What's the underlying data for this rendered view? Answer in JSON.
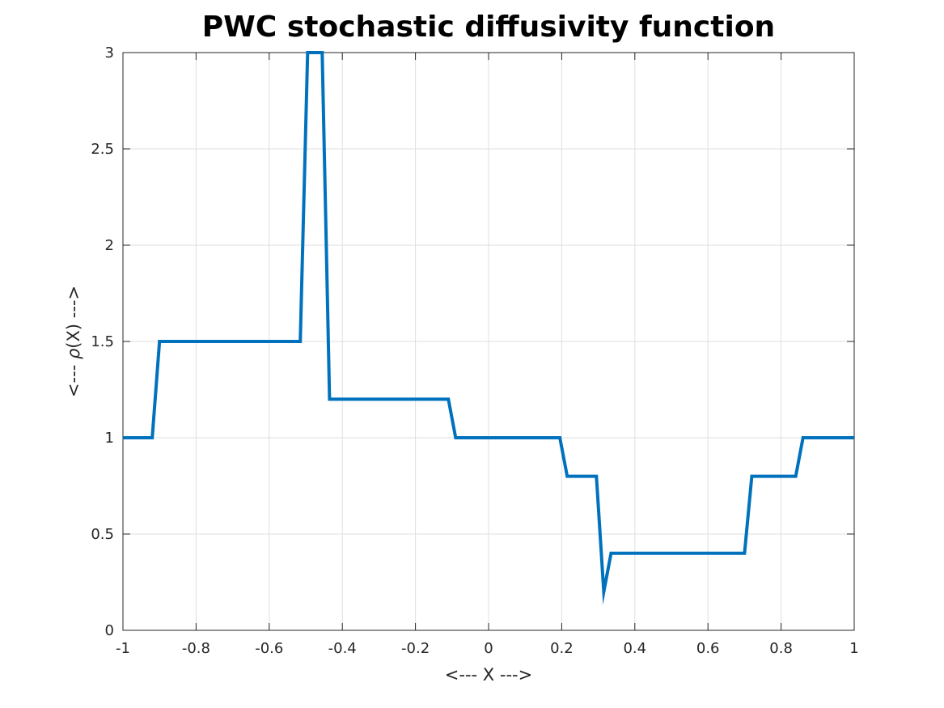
{
  "chart_data": {
    "type": "line",
    "title": "PWC stochastic diffusivity function",
    "xlabel": "<--- X --->",
    "ylabel_prefix": "<--- ",
    "ylabel_symbol": "ρ",
    "ylabel_suffix": "(X) --->",
    "xlim": [
      -1,
      1
    ],
    "ylim": [
      0,
      3
    ],
    "xticks": [
      -1,
      -0.8,
      -0.6,
      -0.4,
      -0.2,
      0,
      0.2,
      0.4,
      0.6,
      0.8,
      1
    ],
    "xtick_labels": [
      "-1",
      "-0.8",
      "-0.6",
      "-0.4",
      "-0.2",
      "0",
      "0.2",
      "0.4",
      "0.6",
      "0.8",
      "1"
    ],
    "yticks": [
      0,
      0.5,
      1,
      1.5,
      2,
      2.5,
      3
    ],
    "ytick_labels": [
      "0",
      "0.5",
      "1",
      "1.5",
      "2",
      "2.5",
      "3"
    ],
    "grid": true,
    "color": "#0072BD",
    "series": [
      {
        "x": [
          -1,
          -0.92,
          -0.9,
          -0.515,
          -0.495,
          -0.455,
          -0.435,
          -0.11,
          -0.09,
          0.195,
          0.215,
          0.295,
          0.315,
          0.335,
          0.7,
          0.72,
          0.84,
          0.86,
          1
        ],
        "y": [
          1,
          1,
          1.5,
          1.5,
          3,
          3,
          1.2,
          1.2,
          1,
          1,
          0.8,
          0.8,
          0.2,
          0.4,
          0.4,
          0.8,
          0.8,
          1,
          1
        ]
      }
    ]
  }
}
